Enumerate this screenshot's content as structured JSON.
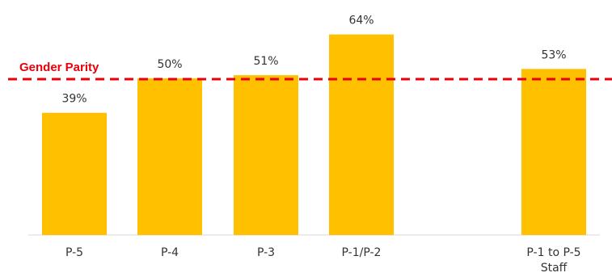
{
  "chart_data": {
    "type": "bar",
    "categories": [
      "P-5",
      "P-4",
      "P-3",
      "P-1/P-2",
      "P-1 to P-5 Staff"
    ],
    "category_lines": [
      [
        "P-5"
      ],
      [
        "P-4"
      ],
      [
        "P-3"
      ],
      [
        "P-1/P-2"
      ],
      [
        "P-1 to P-5",
        "Staff"
      ]
    ],
    "values": [
      39,
      50,
      51,
      64,
      53
    ],
    "data_labels": [
      "39%",
      "50%",
      "51%",
      "64%",
      "53%"
    ],
    "unit": "%",
    "ylim": [
      0,
      70
    ],
    "grid": false,
    "bar_color": "#FFC000",
    "reference_line": {
      "label": "Gender Parity",
      "value": 50,
      "color": "#E8000B",
      "style": "dashed"
    }
  }
}
